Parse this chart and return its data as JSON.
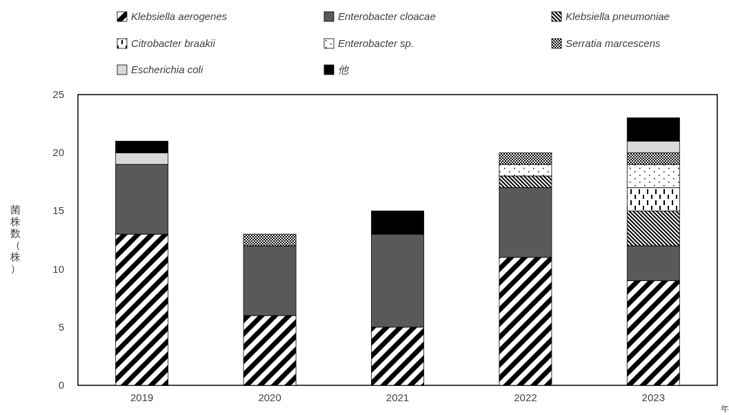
{
  "chart_data": {
    "type": "bar",
    "stacked": true,
    "ylabel": "菌株数（株）",
    "xlabel": "年",
    "categories": [
      "2019",
      "2020",
      "2021",
      "2022",
      "2023"
    ],
    "ylim": [
      0,
      25
    ],
    "yticks": [
      0,
      5,
      10,
      15,
      20,
      25
    ],
    "grid": false,
    "legend": "top",
    "series": [
      {
        "name": "Klebsiella aerogenes",
        "color": "#000000",
        "values": [
          13,
          6,
          5,
          11,
          9
        ]
      },
      {
        "name": "Enterobacter cloacae",
        "color": "#595959",
        "values": [
          6,
          6,
          8,
          6,
          3
        ]
      },
      {
        "name": "Klebsiella pneumoniae",
        "color": "#000000",
        "values": [
          0,
          0,
          0,
          1,
          3
        ]
      },
      {
        "name": "Citrobacter braakii",
        "color": "#000000",
        "values": [
          0,
          0,
          0,
          0,
          2
        ]
      },
      {
        "name": "Enterobacter sp.",
        "color": "#000000",
        "values": [
          0,
          0,
          0,
          1,
          2
        ]
      },
      {
        "name": "Serratia marcescens",
        "color": "#000000",
        "values": [
          0,
          1,
          0,
          1,
          1
        ]
      },
      {
        "name": "Escherichia coli",
        "color": "#d9d9d9",
        "values": [
          1,
          0,
          0,
          0,
          1
        ]
      },
      {
        "name": "他",
        "color": "#000000",
        "values": [
          1,
          0,
          2,
          0,
          2
        ]
      }
    ]
  }
}
